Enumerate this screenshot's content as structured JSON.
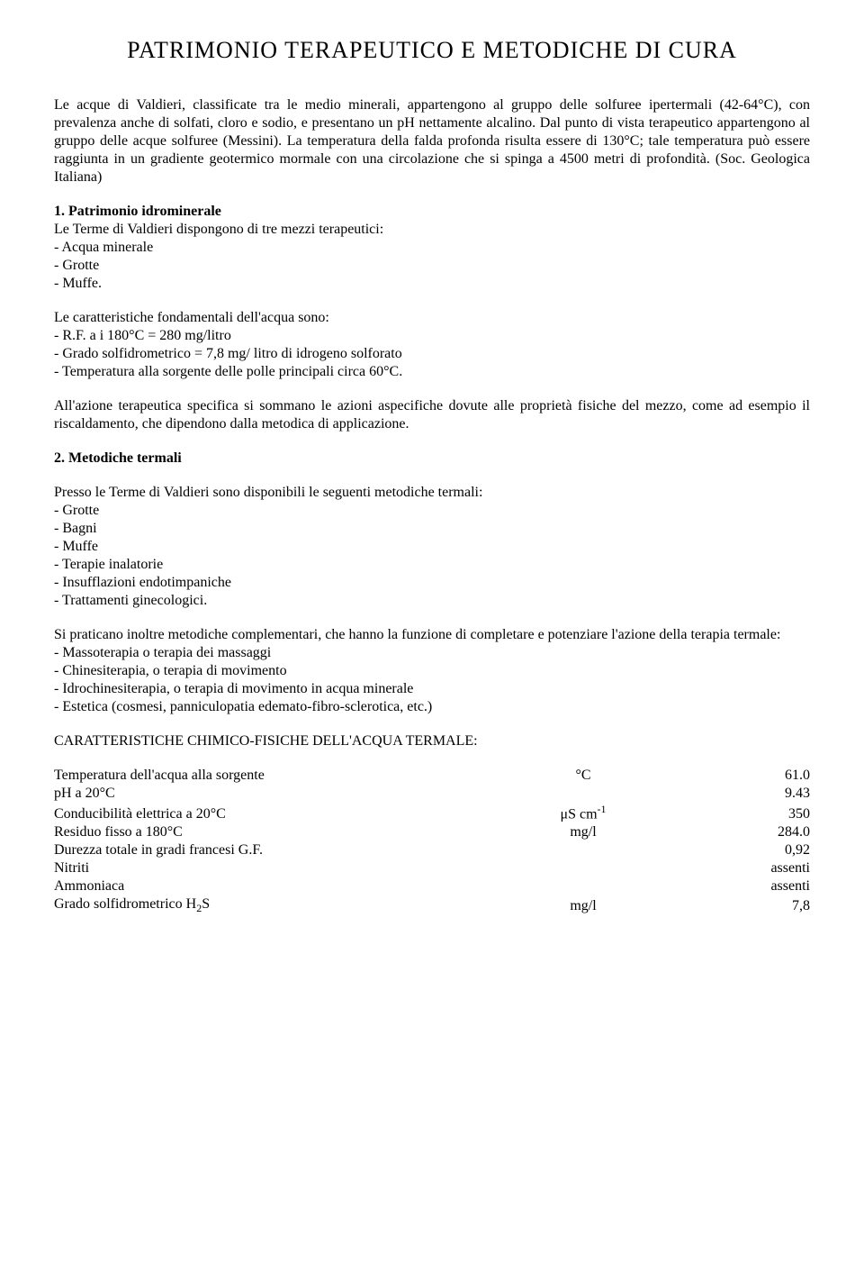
{
  "title": "PATRIMONIO TERAPEUTICO E METODICHE DI CURA",
  "intro": "Le acque di Valdieri, classificate tra le medio minerali, appartengono al gruppo delle solfuree ipertermali (42-64°C), con prevalenza anche di solfati, cloro e sodio, e presentano un pH nettamente alcalino. Dal punto di vista terapeutico appartengono al gruppo delle acque solfuree (Messini). La temperatura della falda profonda risulta essere di 130°C; tale temperatura può essere raggiunta in un gradiente geotermico mormale con una circolazione che si spinga a 4500 metri di profondità. (Soc. Geologica Italiana)",
  "section1": {
    "heading": "1. Patrimonio idrominerale",
    "lead": "Le Terme di Valdieri dispongono di tre mezzi terapeutici:",
    "items": [
      "- Acqua minerale",
      "- Grotte",
      "- Muffe."
    ]
  },
  "waterchar": {
    "lead": "Le caratteristiche fondamentali dell'acqua sono:",
    "items": [
      "- R.F. a i 180°C = 280 mg/litro",
      "- Grado solfidrometrico = 7,8 mg/ litro di idrogeno solforato",
      "- Temperatura alla sorgente delle polle principali circa 60°C."
    ]
  },
  "action": "All'azione terapeutica specifica si sommano le azioni aspecifiche dovute alle proprietà fisiche del mezzo, come ad esempio il riscaldamento, che dipendono dalla metodica di applicazione.",
  "section2": {
    "heading": "2.  Metodiche termali",
    "lead": "Presso le Terme di Valdieri sono disponibili le seguenti metodiche termali:",
    "items": [
      "- Grotte",
      "- Bagni",
      "- Muffe",
      "- Terapie inalatorie",
      "- Insufflazioni endotimpaniche",
      "- Trattamenti ginecologici."
    ]
  },
  "complementary": {
    "lead": "Si praticano inoltre metodiche complementari, che hanno la funzione di completare e potenziare l'azione della terapia termale:",
    "items": [
      "- Massoterapia o terapia dei massaggi",
      "- Chinesiterapia, o terapia di movimento",
      "- Idrochinesiterapia, o terapia di movimento in acqua minerale",
      "- Estetica (cosmesi, panniculopatia edemato-fibro-sclerotica, etc.)"
    ]
  },
  "tableheading": "CARATTERISTICHE CHIMICO-FISICHE DELL'ACQUA TERMALE:",
  "table": {
    "rows": [
      {
        "label": "Temperatura dell'acqua alla sorgente",
        "unit": "°C",
        "value": "61.0"
      },
      {
        "label": "pH a 20°C",
        "unit": "",
        "value": "9.43"
      },
      {
        "label": "Conducibilità elettrica a 20°C",
        "unit_html": "μS cm<sup>-1</sup>",
        "value": "350"
      },
      {
        "label": "Residuo fisso a 180°C",
        "unit": "mg/l",
        "value": "284.0"
      },
      {
        "label": "Durezza totale in gradi francesi G.F.",
        "unit": "",
        "value": "0,92"
      },
      {
        "label": "Nitriti",
        "unit": "",
        "value": "assenti"
      },
      {
        "label": "Ammoniaca",
        "unit": "",
        "value": "assenti"
      },
      {
        "label_html": "Grado solfidrometrico H<sub>2</sub>S",
        "unit": "mg/l",
        "value": "7,8"
      }
    ]
  }
}
